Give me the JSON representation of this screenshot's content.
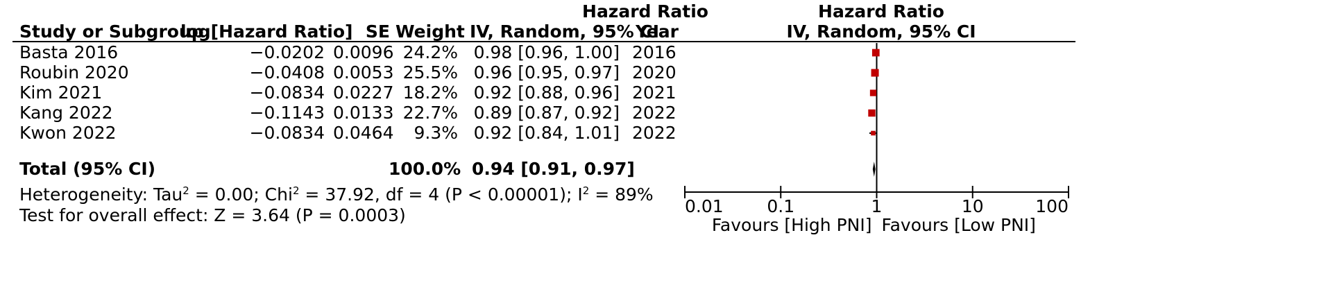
{
  "headers": {
    "study": "Study or Subgroup",
    "loghr": "log[Hazard Ratio]",
    "se": "SE",
    "weight": "Weight",
    "hr_top": "Hazard Ratio",
    "hr_bottom": "IV, Random, 95% CI",
    "year": "Year",
    "plot_top": "Hazard Ratio",
    "plot_bottom": "IV, Random, 95% CI"
  },
  "studies": [
    {
      "name": "Basta 2016",
      "loghr": "−0.0202",
      "se": "0.0096",
      "weight": "24.2%",
      "ci": "0.98 [0.96, 1.00]",
      "year": "2016"
    },
    {
      "name": "Roubin 2020",
      "loghr": "−0.0408",
      "se": "0.0053",
      "weight": "25.5%",
      "ci": "0.96 [0.95, 0.97]",
      "year": "2020"
    },
    {
      "name": "Kim 2021",
      "loghr": "−0.0834",
      "se": "0.0227",
      "weight": "18.2%",
      "ci": "0.92 [0.88, 0.96]",
      "year": "2021"
    },
    {
      "name": "Kang 2022",
      "loghr": "−0.1143",
      "se": "0.0133",
      "weight": "22.7%",
      "ci": "0.89 [0.87, 0.92]",
      "year": "2022"
    },
    {
      "name": "Kwon 2022",
      "loghr": "−0.0834",
      "se": "0.0464",
      "weight": "9.3%",
      "ci": "0.92 [0.84, 1.01]",
      "year": "2022"
    }
  ],
  "total": {
    "label": "Total (95% CI)",
    "weight": "100.0%",
    "ci": "0.94 [0.91, 0.97]"
  },
  "heterogeneity": {
    "prefix": "Heterogeneity: Tau",
    "tau_sup": "2",
    "part2": " = 0.00; Chi",
    "chi_sup": "2",
    "part3": " = 37.92, df = 4 (P < 0.00001); I",
    "i_sup": "2",
    "part4": " = 89%"
  },
  "overall_effect": "Test for overall effect: Z = 3.64 (P = 0.0003)",
  "chart_data": {
    "type": "forest",
    "scale": "log",
    "xlim": [
      0.01,
      100
    ],
    "ticks": [
      0.01,
      0.1,
      1,
      10,
      100
    ],
    "tick_labels": [
      "0.01",
      "0.1",
      "1",
      "10",
      "100"
    ],
    "favours_left": "Favours [High PNI]",
    "favours_right": "Favours [Low PNI]",
    "marker_color": "#c00000",
    "studies": [
      {
        "hr": 0.98,
        "lo": 0.96,
        "hi": 1.0,
        "weight": 24.2
      },
      {
        "hr": 0.96,
        "lo": 0.95,
        "hi": 0.97,
        "weight": 25.5
      },
      {
        "hr": 0.92,
        "lo": 0.88,
        "hi": 0.96,
        "weight": 18.2
      },
      {
        "hr": 0.89,
        "lo": 0.87,
        "hi": 0.92,
        "weight": 22.7
      },
      {
        "hr": 0.92,
        "lo": 0.84,
        "hi": 1.01,
        "weight": 9.3
      }
    ],
    "pooled": {
      "hr": 0.94,
      "lo": 0.91,
      "hi": 0.97
    }
  }
}
